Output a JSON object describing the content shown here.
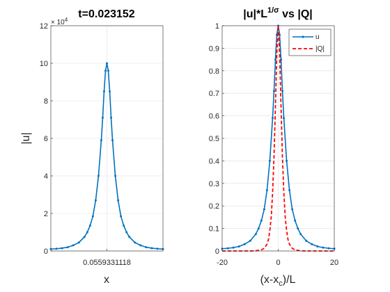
{
  "chart_data": [
    {
      "type": "line",
      "title": "t=0.023152",
      "xlabel": "x",
      "ylabel": "|u|",
      "exponent_label": "× 10",
      "exponent_sup": "4",
      "x_tick_labels": [
        "0.0559331118"
      ],
      "y_ticks": [
        0,
        2,
        4,
        6,
        8,
        10,
        12
      ],
      "y_tick_labels": [
        "0",
        "2",
        "4",
        "6",
        "8",
        "10",
        "12"
      ],
      "ylim": [
        0,
        12
      ],
      "x_range_relative": [
        -20,
        20
      ],
      "grid": true,
      "series": [
        {
          "color": "#0072bd",
          "marker": "dot",
          "x": [
            -20,
            -18,
            -16,
            -14,
            -12,
            -10,
            -8,
            -7,
            -6,
            -5,
            -4,
            -3,
            -2,
            -1.5,
            -1,
            -0.5,
            0,
            0.5,
            1,
            1.5,
            2,
            3,
            4,
            5,
            6,
            7,
            8,
            10,
            12,
            14,
            16,
            18,
            20
          ],
          "y": [
            0.1,
            0.12,
            0.15,
            0.2,
            0.3,
            0.45,
            0.75,
            1.0,
            1.35,
            1.85,
            2.7,
            4.0,
            5.9,
            7.1,
            8.5,
            9.6,
            10.0,
            9.6,
            8.5,
            7.1,
            5.9,
            4.0,
            2.7,
            1.85,
            1.35,
            1.0,
            0.75,
            0.45,
            0.3,
            0.2,
            0.15,
            0.12,
            0.1
          ]
        }
      ]
    },
    {
      "type": "line",
      "title": "|u|*L",
      "title_sup": "1/σ",
      "title_rest": " vs |Q|",
      "xlabel": "(x-x",
      "xlabel_sub": "c",
      "xlabel_rest": ")/L",
      "xlim": [
        -20,
        20
      ],
      "ylim": [
        0,
        1
      ],
      "x_ticks": [
        -20,
        0,
        20
      ],
      "x_tick_labels": [
        "-20",
        "0",
        "20"
      ],
      "y_ticks": [
        0,
        0.1,
        0.2,
        0.3,
        0.4,
        0.5,
        0.6,
        0.7,
        0.8,
        0.9,
        1
      ],
      "y_tick_labels": [
        "0",
        "0.1",
        "0.2",
        "0.3",
        "0.4",
        "0.5",
        "0.6",
        "0.7",
        "0.8",
        "0.9",
        "1"
      ],
      "grid": true,
      "legend_position": "top-right",
      "series": [
        {
          "name": "u",
          "color": "#0072bd",
          "style": "solid-marker",
          "x": [
            -20,
            -18,
            -16,
            -14,
            -12,
            -10,
            -8,
            -7,
            -6,
            -5,
            -4,
            -3,
            -2,
            -1.5,
            -1,
            -0.5,
            0,
            0.5,
            1,
            1.5,
            2,
            3,
            4,
            5,
            6,
            7,
            8,
            10,
            12,
            14,
            16,
            18,
            20
          ],
          "y": [
            0.01,
            0.012,
            0.015,
            0.02,
            0.03,
            0.045,
            0.075,
            0.1,
            0.135,
            0.185,
            0.27,
            0.4,
            0.59,
            0.71,
            0.85,
            0.96,
            1.0,
            0.96,
            0.85,
            0.71,
            0.59,
            0.4,
            0.27,
            0.185,
            0.135,
            0.1,
            0.075,
            0.045,
            0.03,
            0.02,
            0.015,
            0.012,
            0.01
          ]
        },
        {
          "name": "|Q|",
          "color": "#ff0000",
          "style": "dashed",
          "x": [
            -20,
            -15,
            -10,
            -8,
            -6,
            -5,
            -4,
            -3.5,
            -3,
            -2.5,
            -2,
            -1.5,
            -1,
            -0.5,
            0,
            0.5,
            1,
            1.5,
            2,
            2.5,
            3,
            3.5,
            4,
            5,
            6,
            8,
            10,
            15,
            20
          ],
          "y": [
            0,
            0,
            0,
            0.001,
            0.005,
            0.012,
            0.03,
            0.05,
            0.09,
            0.15,
            0.26,
            0.42,
            0.64,
            0.88,
            1.0,
            0.88,
            0.64,
            0.42,
            0.26,
            0.15,
            0.09,
            0.05,
            0.03,
            0.012,
            0.005,
            0.001,
            0,
            0,
            0
          ]
        }
      ]
    }
  ]
}
